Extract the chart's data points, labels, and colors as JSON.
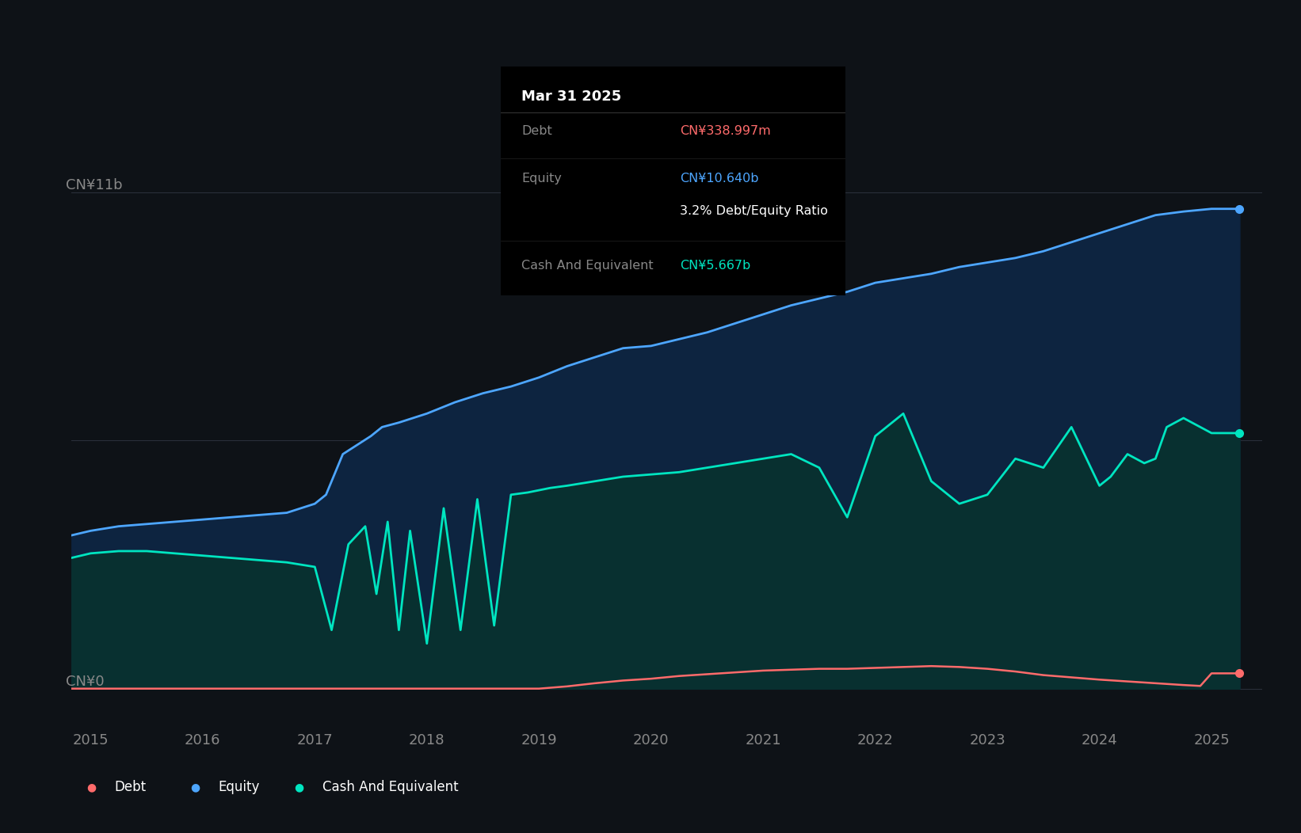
{
  "bg_color": "#0e1217",
  "chart_bg": "#0e1217",
  "equity_color": "#4da6ff",
  "debt_color": "#ff6b6b",
  "cash_color": "#00e5c0",
  "equity_fill": "#0d2440",
  "cash_fill": "#083030",
  "grid_color": "#2a2f3a",
  "text_color": "#ffffff",
  "label_color": "#888888",
  "tooltip_bg": "#000000",
  "tooltip_date": "Mar 31 2025",
  "tooltip_debt_label": "Debt",
  "tooltip_debt_value": "CN¥338.997m",
  "tooltip_debt_color": "#ff6b6b",
  "tooltip_equity_label": "Equity",
  "tooltip_equity_value": "CN¥10.640b",
  "tooltip_equity_color": "#4da6ff",
  "tooltip_ratio": "3.2% Debt/Equity Ratio",
  "tooltip_ratio_color": "#ffffff",
  "tooltip_cash_label": "Cash And Equivalent",
  "tooltip_cash_value": "CN¥5.667b",
  "tooltip_cash_color": "#00e5c0",
  "legend_items": [
    "Debt",
    "Equity",
    "Cash And Equivalent"
  ],
  "legend_colors": [
    "#ff6b6b",
    "#4da6ff",
    "#00e5c0"
  ],
  "ylabel_top": "CN¥11b",
  "ylabel_bottom": "CN¥0",
  "xmin": 2014.83,
  "xmax": 2025.45,
  "ymin": -0.8,
  "ymax": 12.5,
  "ytick_top": 11.0,
  "ytick_mid": 5.5,
  "x_ticks": [
    2015,
    2016,
    2017,
    2018,
    2019,
    2020,
    2021,
    2022,
    2023,
    2024,
    2025
  ],
  "equity_x": [
    2014.83,
    2015.0,
    2015.25,
    2015.5,
    2015.75,
    2016.0,
    2016.25,
    2016.5,
    2016.75,
    2017.0,
    2017.1,
    2017.25,
    2017.5,
    2017.6,
    2017.75,
    2018.0,
    2018.1,
    2018.25,
    2018.5,
    2018.75,
    2019.0,
    2019.1,
    2019.25,
    2019.5,
    2019.75,
    2020.0,
    2020.25,
    2020.5,
    2020.75,
    2021.0,
    2021.25,
    2021.5,
    2021.75,
    2022.0,
    2022.25,
    2022.5,
    2022.75,
    2023.0,
    2023.25,
    2023.5,
    2023.75,
    2024.0,
    2024.25,
    2024.5,
    2024.75,
    2025.0,
    2025.25
  ],
  "equity_y": [
    3.4,
    3.5,
    3.6,
    3.65,
    3.7,
    3.75,
    3.8,
    3.85,
    3.9,
    4.1,
    4.3,
    5.2,
    5.6,
    5.8,
    5.9,
    6.1,
    6.2,
    6.35,
    6.55,
    6.7,
    6.9,
    7.0,
    7.15,
    7.35,
    7.55,
    7.6,
    7.75,
    7.9,
    8.1,
    8.3,
    8.5,
    8.65,
    8.8,
    9.0,
    9.1,
    9.2,
    9.35,
    9.45,
    9.55,
    9.7,
    9.9,
    10.1,
    10.3,
    10.5,
    10.58,
    10.64,
    10.64
  ],
  "cash_x": [
    2014.83,
    2015.0,
    2015.25,
    2015.5,
    2015.75,
    2016.0,
    2016.25,
    2016.5,
    2016.75,
    2017.0,
    2017.15,
    2017.3,
    2017.45,
    2017.55,
    2017.65,
    2017.75,
    2017.85,
    2018.0,
    2018.15,
    2018.3,
    2018.45,
    2018.6,
    2018.75,
    2018.9,
    2019.0,
    2019.1,
    2019.25,
    2019.5,
    2019.75,
    2020.0,
    2020.25,
    2020.5,
    2020.75,
    2021.0,
    2021.25,
    2021.5,
    2021.75,
    2022.0,
    2022.25,
    2022.5,
    2022.75,
    2023.0,
    2023.25,
    2023.5,
    2023.75,
    2024.0,
    2024.1,
    2024.25,
    2024.4,
    2024.5,
    2024.6,
    2024.75,
    2025.0,
    2025.25
  ],
  "cash_y": [
    2.9,
    3.0,
    3.05,
    3.05,
    3.0,
    2.95,
    2.9,
    2.85,
    2.8,
    2.7,
    1.3,
    3.2,
    3.6,
    2.1,
    3.7,
    1.3,
    3.5,
    1.0,
    4.0,
    1.3,
    4.2,
    1.4,
    4.3,
    4.35,
    4.4,
    4.45,
    4.5,
    4.6,
    4.7,
    4.75,
    4.8,
    4.9,
    5.0,
    5.1,
    5.2,
    4.9,
    3.8,
    5.6,
    6.1,
    4.6,
    4.1,
    4.3,
    5.1,
    4.9,
    5.8,
    4.5,
    4.7,
    5.2,
    5.0,
    5.1,
    5.8,
    6.0,
    5.667,
    5.667
  ],
  "debt_x": [
    2014.83,
    2015.0,
    2015.5,
    2016.0,
    2016.5,
    2017.0,
    2017.5,
    2018.0,
    2018.5,
    2018.75,
    2019.0,
    2019.25,
    2019.5,
    2019.75,
    2020.0,
    2020.25,
    2020.5,
    2020.75,
    2021.0,
    2021.25,
    2021.5,
    2021.75,
    2022.0,
    2022.25,
    2022.5,
    2022.75,
    2023.0,
    2023.25,
    2023.5,
    2023.75,
    2024.0,
    2024.25,
    2024.5,
    2024.75,
    2024.9,
    2025.0,
    2025.25
  ],
  "debt_y": [
    0.0,
    0.0,
    0.0,
    0.0,
    0.0,
    0.0,
    0.0,
    0.0,
    0.0,
    0.0,
    0.0,
    0.05,
    0.12,
    0.18,
    0.22,
    0.28,
    0.32,
    0.36,
    0.4,
    0.42,
    0.44,
    0.44,
    0.46,
    0.48,
    0.5,
    0.48,
    0.44,
    0.38,
    0.3,
    0.25,
    0.2,
    0.16,
    0.12,
    0.08,
    0.06,
    0.339,
    0.339
  ]
}
